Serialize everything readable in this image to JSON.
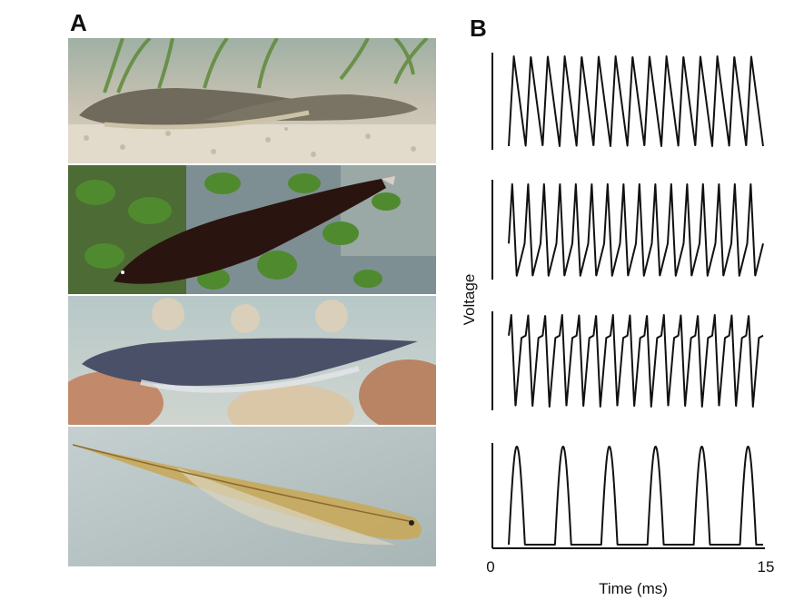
{
  "figure": {
    "panel_a_label": "A",
    "panel_b_label": "B"
  },
  "photos": [
    {
      "subject": "brown-ghost-knifefish-pair",
      "accent": "#6f6a5c"
    },
    {
      "subject": "black-ghost-knifefish",
      "accent": "#2a1410"
    },
    {
      "subject": "clown-knifefish",
      "accent": "#4a5068"
    },
    {
      "subject": "glass-knifefish",
      "accent": "#c8a85a"
    }
  ],
  "chart_data": {
    "type": "line",
    "ylabel": "Voltage",
    "xlabel": "Time (ms)",
    "x_ticks": [
      "0",
      "15"
    ],
    "xlim": [
      0,
      15
    ],
    "line_color": "#111111",
    "series": [
      {
        "cycles": 15,
        "waveform": "sharp-sawtooth"
      },
      {
        "cycles": 16,
        "waveform": "biphasic-sharp"
      },
      {
        "cycles": 15,
        "waveform": "triphasic-spike"
      },
      {
        "cycles": 5.5,
        "waveform": "pulse-train"
      }
    ]
  }
}
